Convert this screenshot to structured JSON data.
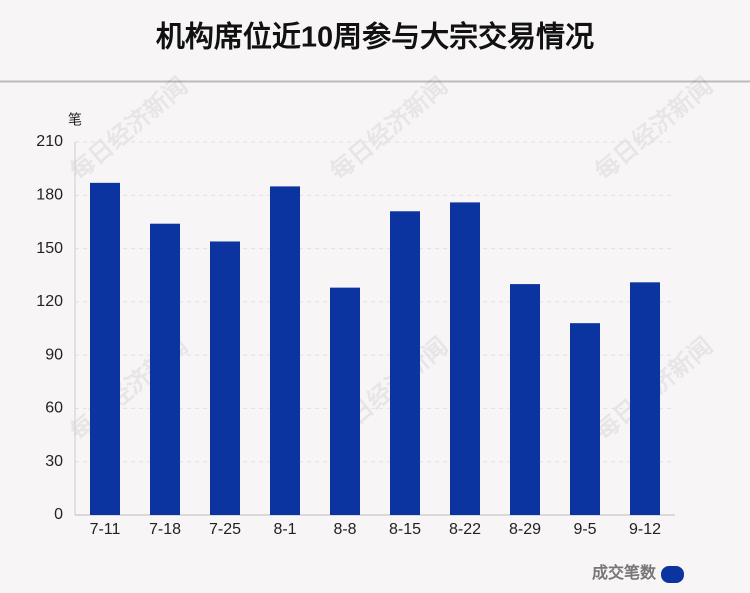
{
  "chart_data": {
    "type": "bar",
    "title": "机构席位近10周参与大宗交易情况",
    "y_unit": "笔",
    "watermark": "每日经济新闻",
    "categories": [
      "7-11",
      "7-18",
      "7-25",
      "8-1",
      "8-8",
      "8-15",
      "8-22",
      "8-29",
      "9-5",
      "9-12"
    ],
    "series": [
      {
        "name": "成交笔数",
        "color": "#0c34a0",
        "values": [
          187,
          164,
          154,
          185,
          128,
          171,
          176,
          130,
          108,
          131
        ]
      }
    ],
    "ylim": [
      0,
      210
    ],
    "yticks": [
      0,
      30,
      60,
      90,
      120,
      150,
      180,
      210
    ],
    "grid": true,
    "legend": "bottom-right"
  }
}
